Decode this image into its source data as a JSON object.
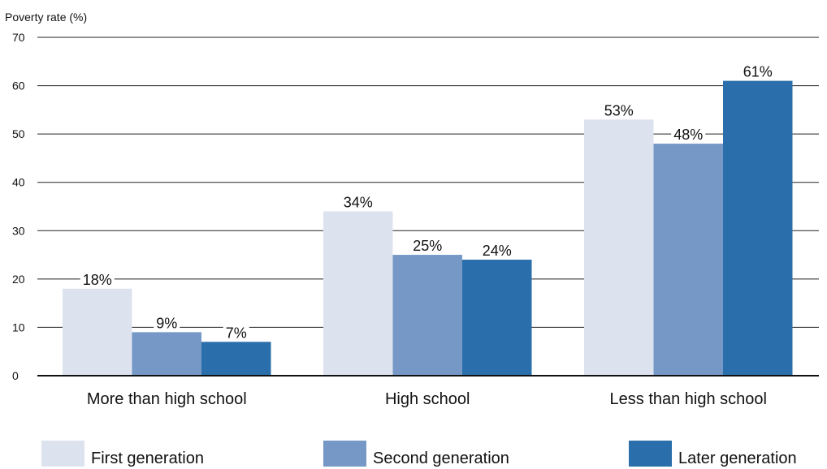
{
  "chart_data": {
    "type": "bar",
    "ylabel": "Poverty rate (%)",
    "ylim": [
      0,
      70
    ],
    "yticks": [
      0,
      10,
      20,
      30,
      40,
      50,
      60,
      70
    ],
    "grid": true,
    "legend_position": "bottom",
    "categories": [
      "More than high school",
      "High school",
      "Less than high school"
    ],
    "series": [
      {
        "name": "First generation",
        "values": [
          18,
          34,
          53
        ],
        "labels": [
          "18%",
          "34%",
          "53%"
        ],
        "color": "#dce3ef"
      },
      {
        "name": "Second generation",
        "values": [
          9,
          25,
          48
        ],
        "labels": [
          "9%",
          "25%",
          "48%"
        ],
        "color": "#7598c6"
      },
      {
        "name": "Later generation",
        "values": [
          7,
          24,
          61
        ],
        "labels": [
          "7%",
          "24%",
          "61%"
        ],
        "color": "#2a6fab"
      }
    ]
  }
}
